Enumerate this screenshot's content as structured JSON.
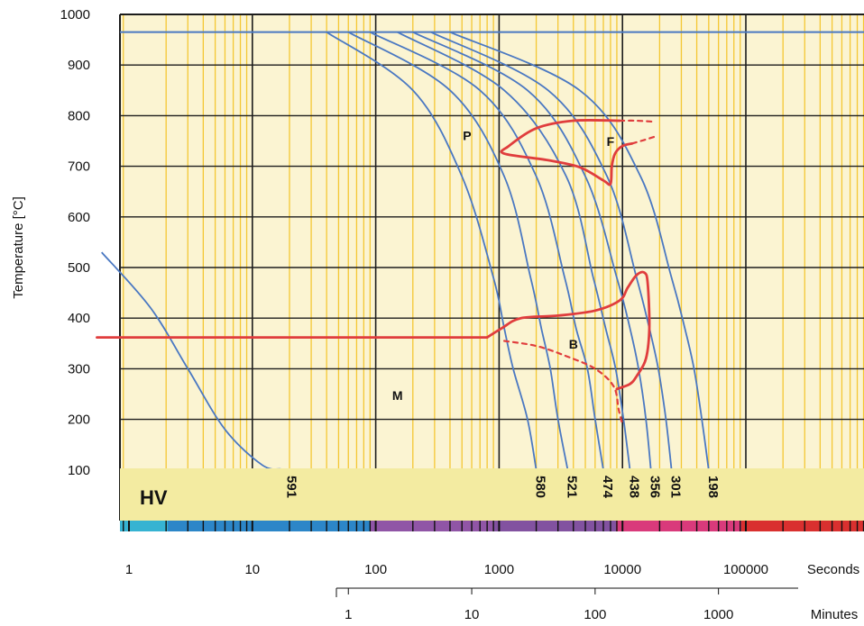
{
  "chart_data": {
    "type": "line",
    "title": "",
    "ylabel": "Temperature [°C]",
    "ylim": [
      0,
      1000
    ],
    "y_ticks": [
      "1000",
      "900",
      "800",
      "700",
      "600",
      "500",
      "400",
      "300",
      "200",
      "100"
    ],
    "x_scale": "log",
    "x_unit_seconds": "Seconds",
    "x_unit_minutes": "Minutes",
    "x_ticks_seconds": [
      "1",
      "10",
      "100",
      "1000",
      "10000",
      "100000"
    ],
    "x_ticks_minutes": [
      "1",
      "10",
      "100",
      "1000"
    ],
    "grid": true,
    "austenitizing_temperature": 965,
    "hardness_band_title": "HV",
    "cooling_curves": [
      {
        "hardness": "591",
        "points": [
          [
            0.6,
            530
          ],
          [
            1.5,
            420
          ],
          [
            3,
            300
          ],
          [
            6,
            180
          ],
          [
            12,
            110
          ],
          [
            17,
            102
          ]
        ]
      },
      {
        "hardness": "580",
        "points": [
          [
            40,
            965
          ],
          [
            200,
            850
          ],
          [
            500,
            680
          ],
          [
            900,
            480
          ],
          [
            1100,
            380
          ],
          [
            1300,
            300
          ],
          [
            1700,
            200
          ],
          [
            2000,
            100
          ]
        ]
      },
      {
        "hardness": "521",
        "points": [
          [
            60,
            965
          ],
          [
            400,
            850
          ],
          [
            1100,
            680
          ],
          [
            1800,
            480
          ],
          [
            2200,
            380
          ],
          [
            2600,
            300
          ],
          [
            3000,
            200
          ],
          [
            3600,
            100
          ]
        ]
      },
      {
        "hardness": "474",
        "points": [
          [
            90,
            965
          ],
          [
            700,
            850
          ],
          [
            2000,
            680
          ],
          [
            3400,
            480
          ],
          [
            4200,
            380
          ],
          [
            5200,
            300
          ],
          [
            6000,
            200
          ],
          [
            7000,
            100
          ]
        ]
      },
      {
        "hardness": "438",
        "points": [
          [
            150,
            965
          ],
          [
            1100,
            850
          ],
          [
            3500,
            680
          ],
          [
            5800,
            480
          ],
          [
            7300,
            380
          ],
          [
            8800,
            300
          ],
          [
            10200,
            200
          ],
          [
            11500,
            100
          ]
        ]
      },
      {
        "hardness": "356",
        "points": [
          [
            200,
            965
          ],
          [
            1700,
            850
          ],
          [
            5000,
            680
          ],
          [
            9000,
            480
          ],
          [
            11500,
            380
          ],
          [
            13500,
            300
          ],
          [
            15500,
            200
          ],
          [
            17000,
            100
          ]
        ]
      },
      {
        "hardness": "301",
        "points": [
          [
            280,
            965
          ],
          [
            2500,
            850
          ],
          [
            7500,
            680
          ],
          [
            13000,
            480
          ],
          [
            16500,
            380
          ],
          [
            19500,
            300
          ],
          [
            22500,
            200
          ],
          [
            25000,
            100
          ]
        ]
      },
      {
        "hardness": "198",
        "points": [
          [
            400,
            965
          ],
          [
            4500,
            850
          ],
          [
            14000,
            680
          ],
          [
            25000,
            480
          ],
          [
            32000,
            380
          ],
          [
            38000,
            300
          ],
          [
            44000,
            200
          ],
          [
            50000,
            100
          ]
        ]
      }
    ],
    "phase_labels": [
      "P",
      "F",
      "B",
      "M"
    ],
    "phase_boundaries": [
      {
        "name": "ferrite-pearlite-start",
        "style": "solid",
        "points": [
          [
            9500,
            790
          ],
          [
            4000,
            790
          ],
          [
            2000,
            775
          ],
          [
            1200,
            740
          ],
          [
            1100,
            725
          ],
          [
            2500,
            712
          ],
          [
            4500,
            698
          ],
          [
            7000,
            672
          ],
          [
            8000,
            665
          ],
          [
            8200,
            700
          ],
          [
            8700,
            725
          ],
          [
            10000,
            740
          ],
          [
            12000,
            745
          ]
        ]
      },
      {
        "name": "ferrite-pearlite-end-dashed-1",
        "style": "dashed",
        "points": [
          [
            9500,
            790
          ],
          [
            13000,
            790
          ],
          [
            18000,
            788
          ]
        ]
      },
      {
        "name": "ferrite-pearlite-end-dashed-2",
        "style": "dashed",
        "points": [
          [
            12000,
            745
          ],
          [
            15000,
            752
          ],
          [
            18000,
            758
          ]
        ]
      },
      {
        "name": "bainite-start",
        "style": "solid",
        "points": [
          [
            800,
            362
          ],
          [
            1050,
            380
          ],
          [
            1500,
            400
          ],
          [
            3000,
            405
          ],
          [
            6000,
            415
          ],
          [
            9500,
            435
          ],
          [
            11000,
            460
          ],
          [
            13000,
            485
          ],
          [
            15000,
            490
          ],
          [
            16000,
            470
          ],
          [
            16500,
            380
          ],
          [
            15500,
            320
          ],
          [
            13000,
            285
          ],
          [
            11500,
            270
          ],
          [
            9000,
            260
          ]
        ]
      },
      {
        "name": "bainite-end-dashed",
        "style": "dashed",
        "points": [
          [
            1100,
            355
          ],
          [
            2000,
            345
          ],
          [
            3500,
            325
          ],
          [
            6000,
            300
          ],
          [
            8500,
            265
          ],
          [
            9300,
            220
          ],
          [
            10000,
            190
          ]
        ]
      },
      {
        "name": "martensite-start",
        "style": "solid",
        "points": [
          [
            0.55,
            362
          ],
          [
            800,
            362
          ]
        ]
      }
    ],
    "colors": {
      "plot_background": "#fbf4d2",
      "minor_grid": "#f4c733",
      "major_grid": "#1c1c1c",
      "cooling_curve": "#4a78c2",
      "phase_boundary": "#e03d3d",
      "hardness_band": "#f3eba1",
      "time_band_1": "#36b3d2",
      "time_band_2": "#2c86c8",
      "time_band_3": "#9055a6",
      "time_band_4": "#8252a0",
      "time_band_5": "#d93a7b",
      "time_band_6": "#d9302f"
    }
  }
}
